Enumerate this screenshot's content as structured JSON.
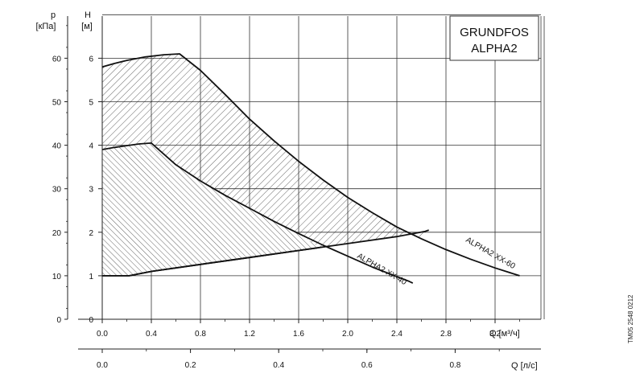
{
  "chart_data": {
    "type": "area",
    "title": [
      "GRUNDFOS",
      "ALPHA2"
    ],
    "document_code": "TM05 2548 0212",
    "axes": {
      "head": {
        "label_top": "H",
        "label_unit": "[м]",
        "ylim": [
          0,
          7
        ],
        "ticks": [
          "0",
          "1",
          "2",
          "3",
          "4",
          "5",
          "6"
        ]
      },
      "pressure": {
        "label_top": "p",
        "label_unit": "[кПа]",
        "ylim": [
          0,
          70
        ],
        "ticks": [
          "0",
          "10",
          "20",
          "30",
          "40",
          "50",
          "60"
        ]
      },
      "flow_m3h": {
        "label": "Q [м³/ч]",
        "xlim": [
          0,
          3.6
        ],
        "ticks": [
          "0.0",
          "0.4",
          "0.8",
          "1.2",
          "1.6",
          "2.0",
          "2.4",
          "2.8",
          "3.2"
        ]
      },
      "flow_ls": {
        "label": "Q [л/с]",
        "xlim": [
          0,
          1.0
        ],
        "ticks": [
          "0.0",
          "0.2",
          "0.4",
          "0.6",
          "0.8"
        ]
      }
    },
    "grid": true,
    "series": [
      {
        "name": "ALPHA2 XX-60",
        "max_curve": [
          [
            0,
            5.8
          ],
          [
            0.1,
            5.88
          ],
          [
            0.2,
            5.95
          ],
          [
            0.35,
            6.03
          ],
          [
            0.5,
            6.08
          ],
          [
            0.63,
            6.1
          ],
          [
            0.8,
            5.72
          ],
          [
            1.0,
            5.17
          ],
          [
            1.2,
            4.6
          ],
          [
            1.4,
            4.1
          ],
          [
            1.6,
            3.63
          ],
          [
            1.8,
            3.2
          ],
          [
            2.0,
            2.8
          ],
          [
            2.2,
            2.45
          ],
          [
            2.4,
            2.12
          ],
          [
            2.6,
            1.85
          ],
          [
            2.8,
            1.6
          ],
          [
            3.0,
            1.38
          ],
          [
            3.2,
            1.18
          ],
          [
            3.4,
            1.0
          ]
        ],
        "min_curve": [
          [
            0,
            1.0
          ],
          [
            0.22,
            1.0
          ],
          [
            0.4,
            1.1
          ],
          [
            0.8,
            1.26
          ],
          [
            1.2,
            1.42
          ],
          [
            1.6,
            1.58
          ],
          [
            2.0,
            1.74
          ],
          [
            2.4,
            1.9
          ],
          [
            2.63,
            2.02
          ],
          [
            2.66,
            2.05
          ]
        ]
      },
      {
        "name": "ALPHA2 XX-40",
        "max_curve": [
          [
            0,
            3.9
          ],
          [
            0.1,
            3.95
          ],
          [
            0.2,
            3.99
          ],
          [
            0.3,
            4.03
          ],
          [
            0.4,
            4.05
          ],
          [
            0.6,
            3.55
          ],
          [
            0.8,
            3.18
          ],
          [
            1.0,
            2.85
          ],
          [
            1.2,
            2.55
          ],
          [
            1.4,
            2.25
          ],
          [
            1.6,
            1.97
          ],
          [
            1.8,
            1.7
          ],
          [
            2.0,
            1.45
          ],
          [
            2.2,
            1.2
          ],
          [
            2.4,
            0.98
          ],
          [
            2.5,
            0.87
          ],
          [
            2.53,
            0.83
          ]
        ],
        "min_curve": [
          [
            0,
            1.0
          ],
          [
            0.22,
            1.0
          ],
          [
            0.4,
            1.1
          ],
          [
            0.8,
            1.26
          ],
          [
            1.2,
            1.42
          ],
          [
            1.6,
            1.58
          ],
          [
            1.75,
            1.64
          ],
          [
            1.77,
            1.65
          ]
        ]
      }
    ]
  }
}
